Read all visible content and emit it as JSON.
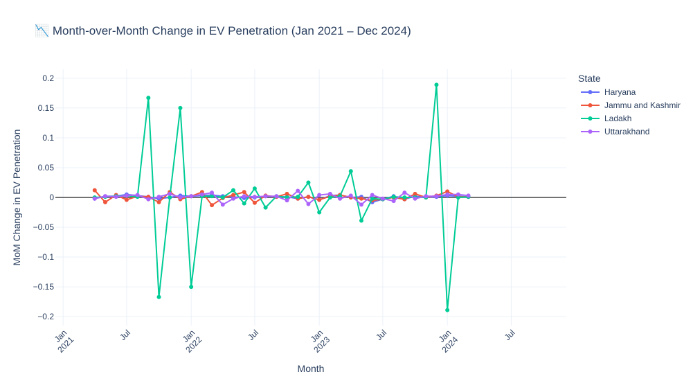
{
  "chart_data": {
    "type": "line",
    "title": "📉 Month-over-Month Change in EV Penetration (Jan 2021 – Dec 2024)",
    "xlabel": "Month",
    "ylabel": "MoM Change in EV Penetration",
    "legend_title": "State",
    "legend_position": "right",
    "grid": true,
    "xlim": [
      "2020-12-10",
      "2024-12-05"
    ],
    "ylim": [
      -0.215,
      0.215
    ],
    "x_ticks": [
      {
        "date": "2021-01-01",
        "line1": "Jan",
        "line2": "2021"
      },
      {
        "date": "2021-07-01",
        "line1": "Jul",
        "line2": ""
      },
      {
        "date": "2022-01-01",
        "line1": "Jan",
        "line2": "2022"
      },
      {
        "date": "2022-07-01",
        "line1": "Jul",
        "line2": ""
      },
      {
        "date": "2023-01-01",
        "line1": "Jan",
        "line2": "2023"
      },
      {
        "date": "2023-07-01",
        "line1": "Jul",
        "line2": ""
      },
      {
        "date": "2024-01-01",
        "line1": "Jan",
        "line2": "2024"
      },
      {
        "date": "2024-07-01",
        "line1": "Jul",
        "line2": ""
      }
    ],
    "y_ticks": [
      {
        "value": 0.2,
        "label": "0.2"
      },
      {
        "value": 0.15,
        "label": "0.15"
      },
      {
        "value": 0.1,
        "label": "0.1"
      },
      {
        "value": 0.05,
        "label": "0.05"
      },
      {
        "value": 0,
        "label": "0"
      },
      {
        "value": -0.05,
        "label": "−0.05"
      },
      {
        "value": -0.1,
        "label": "−0.1"
      },
      {
        "value": -0.15,
        "label": "−0.15"
      },
      {
        "value": -0.2,
        "label": "−0.2"
      }
    ],
    "x": [
      "2021-04-01",
      "2021-05-01",
      "2021-06-01",
      "2021-07-01",
      "2021-08-01",
      "2021-09-01",
      "2021-10-01",
      "2021-11-01",
      "2021-12-01",
      "2022-01-01",
      "2022-02-01",
      "2022-03-01",
      "2022-04-01",
      "2022-05-01",
      "2022-06-01",
      "2022-07-01",
      "2022-08-01",
      "2022-09-01",
      "2022-10-01",
      "2022-11-01",
      "2022-12-01",
      "2023-01-01",
      "2023-02-01",
      "2023-03-01",
      "2023-04-01",
      "2023-05-01",
      "2023-06-01",
      "2023-07-01",
      "2023-08-01",
      "2023-09-01",
      "2023-10-01",
      "2023-11-01",
      "2023-12-01",
      "2024-01-01",
      "2024-02-01",
      "2024-03-01"
    ],
    "series": [
      {
        "name": "Haryana",
        "color": "#636efa",
        "values": [
          -0.002,
          0.002,
          0.002,
          0.005,
          0.003,
          0.001,
          -0.002,
          0.0,
          0.003,
          0.002,
          0.003,
          0.004,
          0.002,
          0.001,
          -0.001,
          0.0,
          0.002,
          0.001,
          0.001,
          -0.002,
          0.001,
          -0.004,
          0.003,
          0.004,
          0.0,
          0.001,
          -0.008,
          -0.003,
          0.002,
          -0.003,
          0.002,
          0.0,
          0.001,
          0.003,
          0.002,
          0.001
        ]
      },
      {
        "name": "Jammu and Kashmir",
        "color": "#ef553b",
        "values": [
          0.012,
          -0.008,
          0.004,
          -0.004,
          0.002,
          0.001,
          -0.008,
          0.009,
          -0.003,
          0.002,
          0.009,
          -0.013,
          -0.001,
          0.004,
          0.009,
          -0.009,
          0.003,
          0.001,
          0.006,
          -0.002,
          0.001,
          -0.004,
          0.002,
          0.004,
          0.0,
          -0.002,
          -0.005,
          -0.003,
          0.0,
          -0.003,
          0.006,
          0.0,
          0.003,
          0.01,
          0.001,
          0.001
        ]
      },
      {
        "name": "Ladakh",
        "color": "#00cc96",
        "values": [
          0.0,
          0.001,
          0.002,
          0.003,
          0.001,
          0.167,
          -0.167,
          0.0,
          0.15,
          -0.15,
          0.002,
          0.002,
          0.0,
          0.012,
          -0.01,
          0.015,
          -0.017,
          0.002,
          0.0,
          0.001,
          0.025,
          -0.025,
          0.0,
          0.002,
          0.044,
          -0.039,
          -0.002,
          -0.003,
          0.001,
          0.0,
          0.0,
          0.0,
          0.189,
          -0.189,
          0.0,
          0.001
        ]
      },
      {
        "name": "Uttarakhand",
        "color": "#ab63fa",
        "values": [
          -0.002,
          0.002,
          0.001,
          0.003,
          0.004,
          -0.003,
          0.001,
          0.006,
          0.0,
          0.002,
          0.005,
          0.008,
          -0.012,
          -0.002,
          0.002,
          0.001,
          0.002,
          0.002,
          -0.005,
          0.011,
          -0.011,
          0.004,
          0.006,
          -0.002,
          0.003,
          -0.012,
          0.004,
          -0.002,
          -0.006,
          0.008,
          -0.002,
          0.002,
          0.002,
          0.005,
          0.005,
          0.003
        ]
      }
    ]
  }
}
